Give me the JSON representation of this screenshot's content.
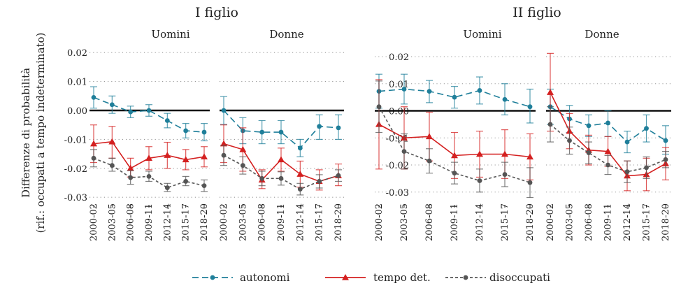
{
  "chart_data": {
    "type": "line",
    "ylabel_line1": "Differenze di probabilità",
    "ylabel_line2": "(rif.: occupati a tempo indeterminato)",
    "categories": [
      "2000-02",
      "2003-05",
      "2006-08",
      "2009-11",
      "2012-14",
      "2015-17",
      "2018-20"
    ],
    "legend": [
      {
        "key": "autonomi",
        "label": "autonomi",
        "color": "#1f7f9a",
        "dash": "9 5",
        "marker": "circle"
      },
      {
        "key": "tempo",
        "label": "tempo det.",
        "color": "#d42020",
        "dash": "",
        "marker": "triangle"
      },
      {
        "key": "disoc",
        "label": "disoccupati",
        "color": "#555555",
        "dash": "4 3",
        "marker": "circle"
      }
    ],
    "groups": [
      {
        "title": "I figlio",
        "ylim": [
          -0.035,
          0.025
        ],
        "yticks": [
          0.02,
          0.01,
          0.0,
          -0.01,
          -0.02,
          -0.03
        ],
        "ytick_labels": [
          "0.02",
          "0.01",
          "0.00",
          "-0.01",
          "-0.02",
          "-0.03"
        ],
        "panels": [
          {
            "title": "Uomini",
            "series": [
              {
                "key": "autonomi",
                "values": [
                  0.0045,
                  0.002,
                  -0.0005,
                  0.0,
                  -0.0035,
                  -0.007,
                  -0.0075
                ],
                "lo": [
                  0.0008,
                  -0.001,
                  -0.0025,
                  -0.002,
                  -0.006,
                  -0.0095,
                  -0.0105
                ],
                "hi": [
                  0.0082,
                  0.005,
                  0.0015,
                  0.002,
                  -0.001,
                  -0.0045,
                  -0.0045
                ]
              },
              {
                "key": "tempo",
                "values": [
                  -0.0115,
                  -0.0108,
                  -0.02,
                  -0.0165,
                  -0.0155,
                  -0.017,
                  -0.016
                ],
                "lo": [
                  -0.018,
                  -0.0165,
                  -0.023,
                  -0.0205,
                  -0.02,
                  -0.0205,
                  -0.0195
                ],
                "hi": [
                  -0.005,
                  -0.0055,
                  -0.0165,
                  -0.0125,
                  -0.011,
                  -0.0135,
                  -0.0125
                ]
              },
              {
                "key": "disoc",
                "values": [
                  -0.0165,
                  -0.019,
                  -0.0232,
                  -0.0228,
                  -0.0267,
                  -0.0245,
                  -0.026
                ],
                "lo": [
                  -0.0195,
                  -0.021,
                  -0.0255,
                  -0.0245,
                  -0.028,
                  -0.026,
                  -0.028
                ],
                "hi": [
                  -0.0135,
                  -0.0165,
                  -0.0208,
                  -0.021,
                  -0.0252,
                  -0.0228,
                  -0.024
                ]
              }
            ]
          },
          {
            "title": "Donne",
            "series": [
              {
                "key": "autonomi",
                "values": [
                  0.0,
                  -0.007,
                  -0.0075,
                  -0.0075,
                  -0.013,
                  -0.0055,
                  -0.006
                ],
                "lo": [
                  -0.0048,
                  -0.0115,
                  -0.0115,
                  -0.0115,
                  -0.016,
                  -0.01,
                  -0.01
                ],
                "hi": [
                  0.0048,
                  -0.0025,
                  -0.0035,
                  -0.0035,
                  -0.01,
                  -0.0015,
                  -0.0015
                ]
              },
              {
                "key": "tempo",
                "values": [
                  -0.0115,
                  -0.0135,
                  -0.024,
                  -0.017,
                  -0.022,
                  -0.0245,
                  -0.0225
                ],
                "lo": [
                  -0.018,
                  -0.021,
                  -0.027,
                  -0.021,
                  -0.0265,
                  -0.0275,
                  -0.026
                ],
                "hi": [
                  -0.005,
                  -0.006,
                  -0.0205,
                  -0.013,
                  -0.0175,
                  -0.0205,
                  -0.0185
                ]
              },
              {
                "key": "disoc",
                "values": [
                  -0.0155,
                  -0.019,
                  -0.0235,
                  -0.0235,
                  -0.0272,
                  -0.0245,
                  -0.0225
                ],
                "lo": [
                  -0.019,
                  -0.022,
                  -0.026,
                  -0.0258,
                  -0.0292,
                  -0.0268,
                  -0.0245
                ],
                "hi": [
                  -0.012,
                  -0.016,
                  -0.021,
                  -0.0212,
                  -0.0252,
                  -0.0222,
                  -0.0205
                ]
              }
            ]
          }
        ]
      },
      {
        "title": "II figlio",
        "ylim": [
          -0.034,
          0.023
        ],
        "yticks": [
          0.02,
          0.01,
          0.0,
          -0.01,
          -0.02,
          -0.03
        ],
        "ytick_labels": [
          "0.02",
          "0.01",
          "0.00",
          "-0.01",
          "-0.02",
          "-0.03"
        ],
        "panels": [
          {
            "title": "Uomini",
            "series": [
              {
                "key": "autonomi",
                "values": [
                  0.0072,
                  0.008,
                  0.0072,
                  0.005,
                  0.0075,
                  0.0042,
                  0.0015
                ],
                "lo": [
                  0.001,
                  0.0025,
                  0.003,
                  0.001,
                  0.0025,
                  -0.0015,
                  -0.0045
                ],
                "hi": [
                  0.0135,
                  0.0135,
                  0.0112,
                  0.009,
                  0.0125,
                  0.01,
                  0.008
                ]
              },
              {
                "key": "tempo",
                "values": [
                  -0.005,
                  -0.01,
                  -0.0095,
                  -0.0165,
                  -0.016,
                  -0.016,
                  -0.017
                ],
                "lo": [
                  -0.0215,
                  -0.0215,
                  -0.0185,
                  -0.025,
                  -0.0245,
                  -0.025,
                  -0.0255
                ],
                "hi": [
                  0.0115,
                  0.0015,
                  -0.0005,
                  -0.008,
                  -0.0075,
                  -0.007,
                  -0.0085
                ]
              },
              {
                "key": "disoc",
                "values": [
                  0.0015,
                  -0.015,
                  -0.0185,
                  -0.023,
                  -0.0258,
                  -0.0235,
                  -0.0265
                ],
                "lo": [
                  -0.008,
                  -0.0215,
                  -0.023,
                  -0.027,
                  -0.03,
                  -0.028,
                  -0.032
                ],
                "hi": [
                  0.011,
                  -0.0085,
                  -0.014,
                  -0.019,
                  -0.0215,
                  -0.019,
                  -0.021
                ]
              }
            ]
          },
          {
            "title": "Donne",
            "series": [
              {
                "key": "autonomi",
                "values": [
                  0.0015,
                  -0.003,
                  -0.0055,
                  -0.0045,
                  -0.0115,
                  -0.0065,
                  -0.011
                ],
                "lo": [
                  -0.005,
                  -0.008,
                  -0.0095,
                  -0.0095,
                  -0.0155,
                  -0.0115,
                  -0.016
                ],
                "hi": [
                  0.008,
                  0.002,
                  -0.0015,
                  0.0,
                  -0.0075,
                  -0.0015,
                  -0.0055
                ]
              },
              {
                "key": "tempo",
                "values": [
                  0.0068,
                  -0.0075,
                  -0.0145,
                  -0.015,
                  -0.024,
                  -0.0235,
                  -0.0195
                ],
                "lo": [
                  -0.0075,
                  -0.014,
                  -0.02,
                  -0.0205,
                  -0.0295,
                  -0.0295,
                  -0.0255
                ],
                "hi": [
                  0.0212,
                  -0.001,
                  -0.009,
                  -0.0095,
                  -0.0185,
                  -0.0175,
                  -0.0135
                ]
              },
              {
                "key": "disoc",
                "values": [
                  -0.005,
                  -0.011,
                  -0.0155,
                  -0.02,
                  -0.0225,
                  -0.021,
                  -0.018
                ],
                "lo": [
                  -0.0115,
                  -0.016,
                  -0.0195,
                  -0.0235,
                  -0.0265,
                  -0.025,
                  -0.021
                ],
                "hi": [
                  0.0015,
                  -0.006,
                  -0.0115,
                  -0.0165,
                  -0.0185,
                  -0.017,
                  -0.015
                ]
              }
            ]
          }
        ]
      }
    ]
  }
}
